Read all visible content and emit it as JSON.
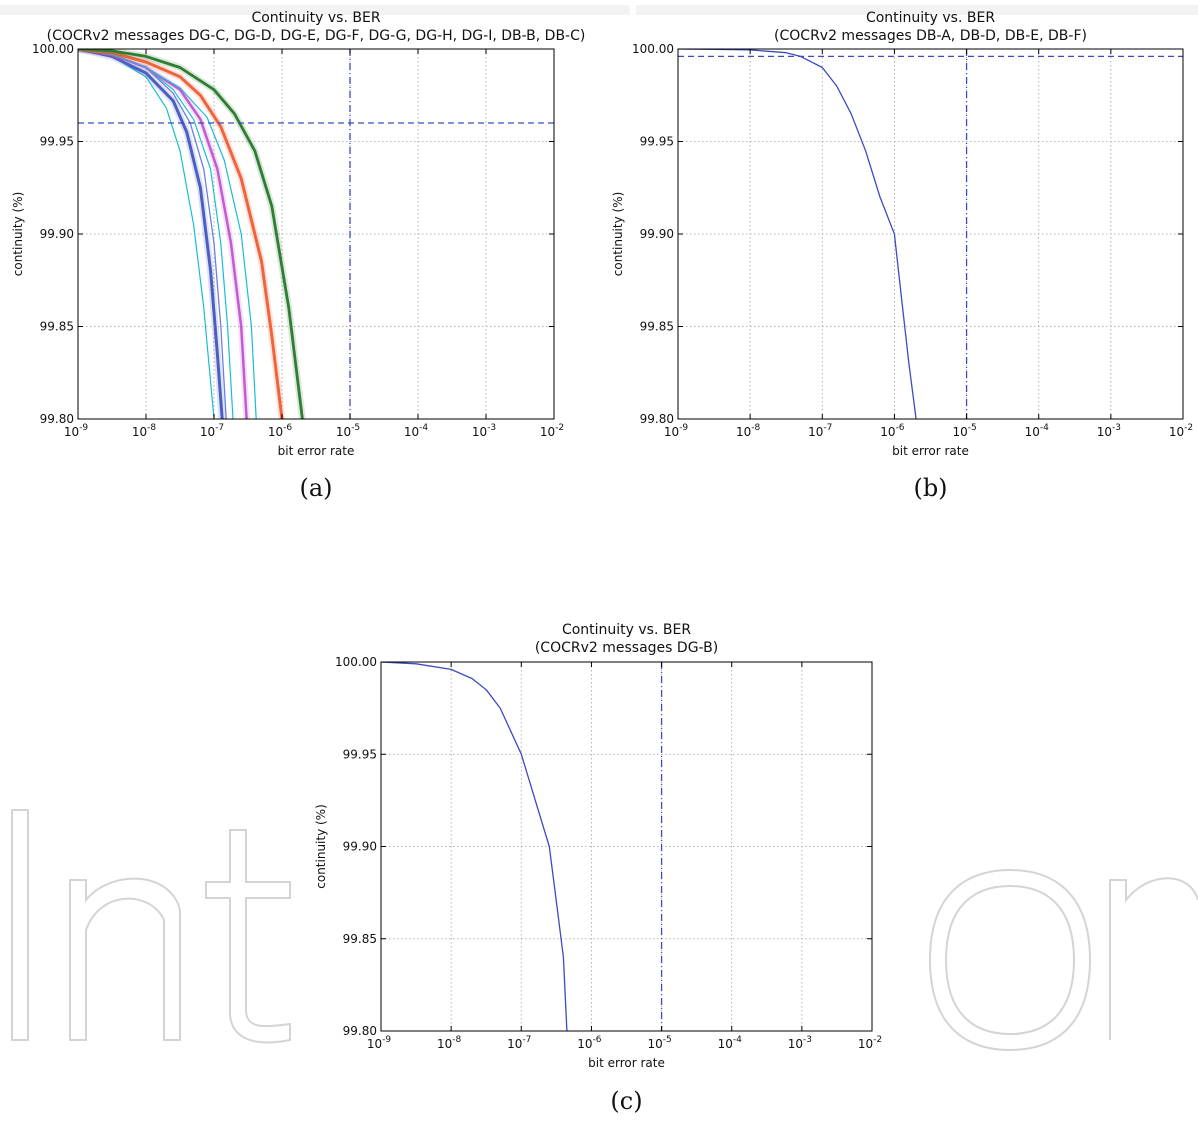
{
  "chart_data": [
    {
      "id": "a",
      "type": "line",
      "title": "Continuity vs. BER",
      "subtitle": "(COCRv2 messages DG-C, DG-D, DG-E, DG-F, DG-G, DG-H, DG-I, DB-B, DB-C)",
      "xlabel": "bit error rate",
      "ylabel": "continuity (%)",
      "caption": "(a)",
      "x_scale": "log",
      "xlim_exp": [
        -9,
        -2
      ],
      "x_tick_exponents": [
        -9,
        -8,
        -7,
        -6,
        -5,
        -4,
        -3,
        -2
      ],
      "ylim": [
        99.8,
        100.0
      ],
      "y_ticks": [
        "99.80",
        "99.85",
        "99.90",
        "99.95",
        "100.00"
      ],
      "grid": true,
      "ref_hline": 99.96,
      "ref_vline_exp": -5,
      "series": [
        {
          "color": "#17becf",
          "width": 1.2,
          "x_exp": [
            -9,
            -8.5,
            -8,
            -7.7,
            -7.5,
            -7.3,
            -7.15,
            -7.05,
            -7.0
          ],
          "y": [
            100.0,
            99.996,
            99.985,
            99.968,
            99.945,
            99.905,
            99.86,
            99.82,
            99.8
          ]
        },
        {
          "color": "#4a5fc1",
          "width": 3.0,
          "x_exp": [
            -9,
            -8.5,
            -8,
            -7.6,
            -7.4,
            -7.2,
            -7.05,
            -6.95,
            -6.88
          ],
          "y": [
            100.0,
            99.996,
            99.987,
            99.972,
            99.955,
            99.925,
            99.88,
            99.835,
            99.8
          ]
        },
        {
          "color": "#6d7fe0",
          "width": 1.3,
          "x_exp": [
            -9,
            -8.5,
            -8,
            -7.6,
            -7.35,
            -7.15,
            -7.0,
            -6.9,
            -6.82
          ],
          "y": [
            100.0,
            99.997,
            99.99,
            99.976,
            99.96,
            99.935,
            99.895,
            99.85,
            99.8
          ]
        },
        {
          "color": "#17becf",
          "width": 1.2,
          "x_exp": [
            -9,
            -8.5,
            -8,
            -7.6,
            -7.3,
            -7.05,
            -6.9,
            -6.8,
            -6.72
          ],
          "y": [
            100.0,
            99.997,
            99.99,
            99.978,
            99.962,
            99.935,
            99.895,
            99.85,
            99.8
          ]
        },
        {
          "color": "#c25bd1",
          "width": 2.5,
          "x_exp": [
            -9,
            -8.5,
            -8,
            -7.5,
            -7.2,
            -6.95,
            -6.75,
            -6.6,
            -6.52
          ],
          "y": [
            100.0,
            99.997,
            99.99,
            99.978,
            99.962,
            99.935,
            99.895,
            99.85,
            99.8
          ]
        },
        {
          "color": "#17becf",
          "width": 1.2,
          "x_exp": [
            -9,
            -8.5,
            -8,
            -7.5,
            -7.1,
            -6.85,
            -6.6,
            -6.45,
            -6.38
          ],
          "y": [
            100.0,
            99.997,
            99.99,
            99.979,
            99.963,
            99.94,
            99.9,
            99.85,
            99.8
          ]
        },
        {
          "color": "#f0643c",
          "width": 3.0,
          "x_exp": [
            -9,
            -8.5,
            -8,
            -7.5,
            -7.2,
            -6.9,
            -6.6,
            -6.3,
            -6.15,
            -6.0
          ],
          "y": [
            100.0,
            99.998,
            99.993,
            99.985,
            99.975,
            99.958,
            99.93,
            99.885,
            99.845,
            99.8
          ]
        },
        {
          "color": "#2e7d32",
          "width": 2.8,
          "x_exp": [
            -9,
            -8.5,
            -8,
            -7.5,
            -7.0,
            -6.7,
            -6.4,
            -6.15,
            -5.9,
            -5.7
          ],
          "y": [
            100.0,
            99.999,
            99.996,
            99.99,
            99.978,
            99.965,
            99.945,
            99.915,
            99.86,
            99.8
          ]
        }
      ]
    },
    {
      "id": "b",
      "type": "line",
      "title": "Continuity vs. BER",
      "subtitle": "(COCRv2 messages DB-A, DB-D, DB-E, DB-F)",
      "xlabel": "bit error rate",
      "ylabel": "continuity (%)",
      "caption": "(b)",
      "x_scale": "log",
      "xlim_exp": [
        -9,
        -2
      ],
      "x_tick_exponents": [
        -9,
        -8,
        -7,
        -6,
        -5,
        -4,
        -3,
        -2
      ],
      "ylim": [
        99.8,
        100.0
      ],
      "y_ticks": [
        "99.80",
        "99.85",
        "99.90",
        "99.95",
        "100.00"
      ],
      "grid": true,
      "ref_hline": 99.996,
      "ref_vline_exp": -5,
      "series": [
        {
          "color": "#3b4cc0",
          "width": 1.3,
          "x_exp": [
            -9,
            -8.5,
            -8,
            -7.5,
            -7.3,
            -7.0,
            -6.8,
            -6.6,
            -6.4,
            -6.2,
            -6.0,
            -5.9,
            -5.8,
            -5.7
          ],
          "y": [
            100.0,
            99.9998,
            99.9995,
            99.998,
            99.996,
            99.99,
            99.98,
            99.965,
            99.945,
            99.92,
            99.9,
            99.865,
            99.83,
            99.8
          ]
        }
      ]
    },
    {
      "id": "c",
      "type": "line",
      "title": "Continuity vs. BER",
      "subtitle": "(COCRv2 messages DG-B)",
      "xlabel": "bit error rate",
      "ylabel": "continuity (%)",
      "caption": "(c)",
      "x_scale": "log",
      "xlim_exp": [
        -9,
        -2
      ],
      "x_tick_exponents": [
        -9,
        -8,
        -7,
        -6,
        -5,
        -4,
        -3,
        -2
      ],
      "ylim": [
        99.8,
        100.0
      ],
      "y_ticks": [
        "99.80",
        "99.85",
        "99.90",
        "99.95",
        "100.00"
      ],
      "grid": true,
      "ref_vline_exp": -5,
      "series": [
        {
          "color": "#3b4cc0",
          "width": 1.3,
          "x_exp": [
            -9,
            -8.5,
            -8,
            -7.7,
            -7.5,
            -7.3,
            -7.0,
            -6.8,
            -6.6,
            -6.5,
            -6.4,
            -6.35
          ],
          "y": [
            100.0,
            99.999,
            99.996,
            99.991,
            99.985,
            99.975,
            99.95,
            99.925,
            99.9,
            99.87,
            99.84,
            99.8
          ]
        }
      ]
    }
  ]
}
